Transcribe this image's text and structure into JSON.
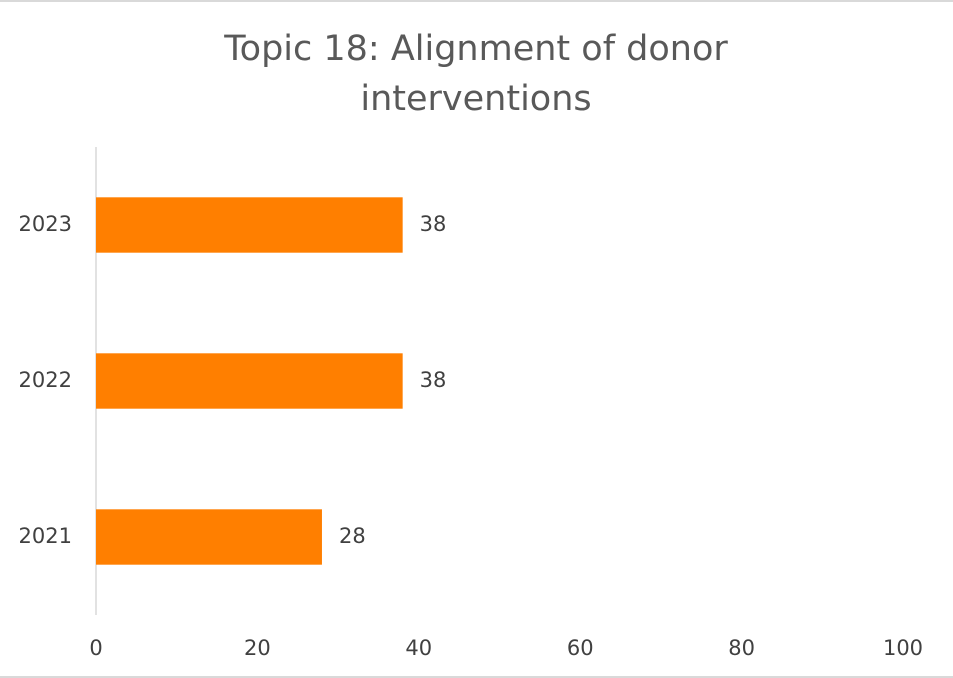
{
  "chart_data": {
    "type": "bar",
    "orientation": "horizontal",
    "title": "Topic 18: Alignment of donor interventions",
    "categories": [
      "2021",
      "2022",
      "2023"
    ],
    "values": [
      28,
      38,
      38
    ],
    "color": "#ff7f00",
    "xlim": [
      0,
      100
    ],
    "xticks": [
      0,
      20,
      40,
      60,
      80,
      100
    ],
    "grid": false
  }
}
